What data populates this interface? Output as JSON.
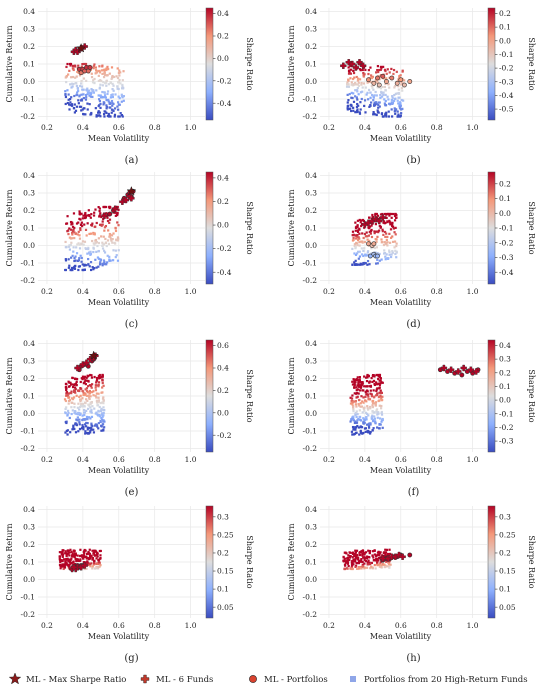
{
  "chart_data": [
    {
      "type": "scatter",
      "panel_label": "(a)",
      "xlabel": "Mean Volatility",
      "ylabel": "Cumulative Return",
      "xlim": [
        0.15,
        1.08
      ],
      "ylim": [
        -0.22,
        0.42
      ],
      "xticks": [
        0.2,
        0.4,
        0.6,
        0.8,
        1.0
      ],
      "yticks": [
        -0.2,
        -0.1,
        0.0,
        0.1,
        0.2,
        0.3,
        0.4
      ],
      "colorbar": {
        "label": "Sharpe Ratio",
        "ticks": [
          -0.4,
          -0.2,
          0.0,
          0.2,
          0.4
        ],
        "min": -0.55,
        "max": 0.45
      },
      "series": [
        {
          "name": "Portfolios from 20 High-Return Funds",
          "marker": "square",
          "cloud": {
            "x_min": 0.3,
            "x_max": 0.63,
            "y_min": -0.2,
            "y_max": 0.1,
            "slope": -0.55,
            "n": 320
          }
        },
        {
          "name": "ML - Portfolios",
          "marker": "circle",
          "points": [
            [
              0.38,
              0.07
            ],
            [
              0.39,
              0.05
            ],
            [
              0.4,
              0.07
            ],
            [
              0.41,
              0.06
            ],
            [
              0.42,
              0.08
            ],
            [
              0.43,
              0.06
            ],
            [
              0.44,
              0.08
            ]
          ]
        },
        {
          "name": "ML - 6 Funds",
          "marker": "plus",
          "points": [
            [
              0.35,
              0.17
            ],
            [
              0.36,
              0.18
            ],
            [
              0.38,
              0.18
            ],
            [
              0.39,
              0.19
            ],
            [
              0.41,
              0.2
            ],
            [
              0.37,
              0.17
            ]
          ]
        },
        {
          "name": "ML - Max Sharpe Ratio",
          "marker": "star",
          "points": [
            [
              0.39,
              0.19
            ]
          ]
        }
      ]
    },
    {
      "type": "scatter",
      "panel_label": "(b)",
      "xlabel": "Mean Volatility",
      "ylabel": "Cumulative Return",
      "xlim": [
        0.15,
        1.08
      ],
      "ylim": [
        -0.22,
        0.42
      ],
      "xticks": [
        0.2,
        0.4,
        0.6,
        0.8,
        1.0
      ],
      "yticks": [
        -0.2,
        -0.1,
        0.0,
        0.1,
        0.2,
        0.3,
        0.4
      ],
      "colorbar": {
        "label": "Sharpe Ratio",
        "ticks": [
          -0.5,
          -0.4,
          -0.3,
          -0.2,
          -0.1,
          0.0,
          0.1,
          0.2
        ],
        "min": -0.58,
        "max": 0.24
      },
      "series": [
        {
          "name": "Portfolios from 20 High-Return Funds",
          "marker": "square",
          "cloud": {
            "x_min": 0.3,
            "x_max": 0.62,
            "y_min": -0.2,
            "y_max": 0.1,
            "slope": -0.5,
            "n": 320
          }
        },
        {
          "name": "ML - Portfolios",
          "marker": "circle",
          "points": [
            [
              0.42,
              0.01
            ],
            [
              0.45,
              -0.01
            ],
            [
              0.47,
              0.02
            ],
            [
              0.48,
              -0.02
            ],
            [
              0.5,
              0.03
            ],
            [
              0.52,
              0.0
            ],
            [
              0.55,
              0.02
            ],
            [
              0.58,
              -0.01
            ],
            [
              0.6,
              0.01
            ],
            [
              0.62,
              -0.02
            ],
            [
              0.65,
              0.0
            ]
          ]
        },
        {
          "name": "ML - 6 Funds",
          "marker": "plus",
          "points": [
            [
              0.28,
              0.09
            ],
            [
              0.31,
              0.11
            ],
            [
              0.33,
              0.1
            ],
            [
              0.35,
              0.08
            ],
            [
              0.37,
              0.11
            ],
            [
              0.39,
              0.09
            ]
          ]
        },
        {
          "name": "ML - Max Sharpe Ratio",
          "marker": "star",
          "points": []
        }
      ]
    },
    {
      "type": "scatter",
      "panel_label": "(c)",
      "xlabel": "Mean Volatility",
      "ylabel": "Cumulative Return",
      "xlim": [
        0.15,
        1.08
      ],
      "ylim": [
        -0.22,
        0.42
      ],
      "xticks": [
        0.2,
        0.4,
        0.6,
        0.8,
        1.0
      ],
      "yticks": [
        -0.2,
        -0.1,
        0.0,
        0.1,
        0.2,
        0.3,
        0.4
      ],
      "colorbar": {
        "label": "Sharpe Ratio",
        "ticks": [
          -0.4,
          -0.2,
          0.0,
          0.2,
          0.4
        ],
        "min": -0.5,
        "max": 0.45
      },
      "series": [
        {
          "name": "Portfolios from 20 High-Return Funds",
          "marker": "square",
          "cloud": {
            "x_min": 0.3,
            "x_max": 0.6,
            "y_min": -0.14,
            "y_max": 0.22,
            "slope": 1.0,
            "n": 300
          }
        },
        {
          "name": "ML - Portfolios",
          "marker": "circle",
          "points": [
            [
              0.55,
              0.18
            ],
            [
              0.57,
              0.2
            ],
            [
              0.63,
              0.27
            ],
            [
              0.65,
              0.29
            ],
            [
              0.66,
              0.3
            ],
            [
              0.67,
              0.28
            ],
            [
              0.68,
              0.31
            ]
          ]
        },
        {
          "name": "ML - 6 Funds",
          "marker": "plus",
          "points": [
            [
              0.52,
              0.17
            ],
            [
              0.58,
              0.21
            ],
            [
              0.62,
              0.25
            ],
            [
              0.64,
              0.26
            ],
            [
              0.66,
              0.28
            ],
            [
              0.67,
              0.27
            ]
          ]
        },
        {
          "name": "ML - Max Sharpe Ratio",
          "marker": "star",
          "points": [
            [
              0.67,
              0.31
            ]
          ]
        }
      ]
    },
    {
      "type": "scatter",
      "panel_label": "(d)",
      "xlabel": "Mean Volatility",
      "ylabel": "Cumulative Return",
      "xlim": [
        0.15,
        1.08
      ],
      "ylim": [
        -0.22,
        0.42
      ],
      "xticks": [
        0.2,
        0.4,
        0.6,
        0.8,
        1.0
      ],
      "yticks": [
        -0.2,
        -0.1,
        0.0,
        0.1,
        0.2,
        0.3,
        0.4
      ],
      "colorbar": {
        "label": "Sharpe Ratio",
        "ticks": [
          -0.4,
          -0.3,
          -0.2,
          -0.1,
          0.0,
          0.1,
          0.2
        ],
        "min": -0.48,
        "max": 0.28
      },
      "series": [
        {
          "name": "Portfolios from 20 High-Return Funds",
          "marker": "square",
          "cloud": {
            "x_min": 0.33,
            "x_max": 0.58,
            "y_min": -0.11,
            "y_max": 0.18,
            "slope": 1.0,
            "n": 260
          }
        },
        {
          "name": "ML - Portfolios",
          "marker": "circle",
          "points": [
            [
              0.42,
              0.01
            ],
            [
              0.44,
              0.0
            ],
            [
              0.45,
              0.01
            ],
            [
              0.43,
              -0.06
            ],
            [
              0.45,
              -0.05
            ],
            [
              0.46,
              -0.06
            ],
            [
              0.47,
              -0.06
            ]
          ]
        },
        {
          "name": "ML - 6 Funds",
          "marker": "plus",
          "points": [
            [
              0.4,
              0.12
            ],
            [
              0.42,
              0.13
            ],
            [
              0.44,
              0.14
            ],
            [
              0.46,
              0.15
            ],
            [
              0.48,
              0.14
            ],
            [
              0.5,
              0.16
            ]
          ]
        },
        {
          "name": "ML - Max Sharpe Ratio",
          "marker": "star",
          "points": []
        }
      ]
    },
    {
      "type": "scatter",
      "panel_label": "(e)",
      "xlabel": "Mean Volatility",
      "ylabel": "Cumulative Return",
      "xlim": [
        0.15,
        1.08
      ],
      "ylim": [
        -0.22,
        0.42
      ],
      "xticks": [
        0.2,
        0.4,
        0.6,
        0.8,
        1.0
      ],
      "yticks": [
        -0.2,
        -0.1,
        0.0,
        0.1,
        0.2,
        0.3,
        0.4
      ],
      "colorbar": {
        "label": "Sharpe Ratio",
        "ticks": [
          -0.2,
          0.0,
          0.2,
          0.4,
          0.6
        ],
        "min": -0.35,
        "max": 0.65
      },
      "series": [
        {
          "name": "Portfolios from 20 High-Return Funds",
          "marker": "square",
          "cloud": {
            "x_min": 0.3,
            "x_max": 0.52,
            "y_min": -0.12,
            "y_max": 0.22,
            "slope": 0.6,
            "n": 330
          }
        },
        {
          "name": "ML - Portfolios",
          "marker": "circle",
          "points": [
            [
              0.38,
              0.25
            ],
            [
              0.39,
              0.27
            ],
            [
              0.41,
              0.28
            ],
            [
              0.43,
              0.27
            ],
            [
              0.45,
              0.3
            ],
            [
              0.46,
              0.31
            ]
          ]
        },
        {
          "name": "ML - 6 Funds",
          "marker": "plus",
          "points": [
            [
              0.37,
              0.26
            ],
            [
              0.4,
              0.28
            ],
            [
              0.42,
              0.29
            ],
            [
              0.44,
              0.31
            ],
            [
              0.46,
              0.32
            ],
            [
              0.47,
              0.33
            ]
          ]
        },
        {
          "name": "ML - Max Sharpe Ratio",
          "marker": "star",
          "points": [
            [
              0.46,
              0.33
            ]
          ]
        }
      ]
    },
    {
      "type": "scatter",
      "panel_label": "(f)",
      "xlabel": "Mean Volatility",
      "ylabel": "Cumulative Return",
      "xlim": [
        0.15,
        1.08
      ],
      "ylim": [
        -0.22,
        0.42
      ],
      "xticks": [
        0.2,
        0.4,
        0.6,
        0.8,
        1.0
      ],
      "yticks": [
        -0.2,
        -0.1,
        0.0,
        0.1,
        0.2,
        0.3,
        0.4
      ],
      "colorbar": {
        "label": "Sharpe Ratio",
        "ticks": [
          -0.3,
          -0.2,
          -0.1,
          0.0,
          0.1,
          0.2,
          0.3,
          0.4
        ],
        "min": -0.38,
        "max": 0.44
      },
      "series": [
        {
          "name": "Portfolios from 20 High-Return Funds",
          "marker": "square",
          "cloud": {
            "x_min": 0.32,
            "x_max": 0.5,
            "y_min": -0.12,
            "y_max": 0.22,
            "slope": 0.6,
            "n": 320
          }
        },
        {
          "name": "ML - Portfolios",
          "marker": "circle",
          "points": [
            [
              0.82,
              0.25
            ],
            [
              0.86,
              0.24
            ],
            [
              0.9,
              0.23
            ],
            [
              0.94,
              0.22
            ],
            [
              0.97,
              0.24
            ],
            [
              1.0,
              0.23
            ],
            [
              1.03,
              0.25
            ]
          ]
        },
        {
          "name": "ML - 6 Funds",
          "marker": "plus",
          "points": [
            [
              0.84,
              0.26
            ],
            [
              0.88,
              0.25
            ],
            [
              0.92,
              0.24
            ],
            [
              0.95,
              0.26
            ],
            [
              0.99,
              0.25
            ],
            [
              1.02,
              0.24
            ]
          ]
        },
        {
          "name": "ML - Max Sharpe Ratio",
          "marker": "star",
          "points": []
        }
      ]
    },
    {
      "type": "scatter",
      "panel_label": "(g)",
      "xlabel": "Mean Volatility",
      "ylabel": "Cumulative Return",
      "xlim": [
        0.15,
        1.08
      ],
      "ylim": [
        -0.22,
        0.42
      ],
      "xticks": [
        0.2,
        0.4,
        0.6,
        0.8,
        1.0
      ],
      "yticks": [
        -0.2,
        -0.1,
        0.0,
        0.1,
        0.2,
        0.3,
        0.4
      ],
      "colorbar": {
        "label": "Sharpe Ratio",
        "ticks": [
          0.05,
          0.1,
          0.15,
          0.2,
          0.25,
          0.3
        ],
        "min": 0.02,
        "max": 0.33
      },
      "series": [
        {
          "name": "Portfolios from 20 High-Return Funds",
          "marker": "square",
          "cloud": {
            "x_min": 0.27,
            "x_max": 0.5,
            "y_min": 0.06,
            "y_max": 0.17,
            "slope": 0.0,
            "n": 240
          }
        },
        {
          "name": "ML - Portfolios",
          "marker": "circle",
          "points": [
            [
              0.34,
              0.06
            ],
            [
              0.35,
              0.07
            ],
            [
              0.36,
              0.07
            ],
            [
              0.37,
              0.08
            ],
            [
              0.38,
              0.07
            ],
            [
              0.39,
              0.08
            ],
            [
              0.4,
              0.08
            ]
          ]
        },
        {
          "name": "ML - 6 Funds",
          "marker": "plus",
          "points": [
            [
              0.34,
              0.06
            ],
            [
              0.36,
              0.06
            ],
            [
              0.37,
              0.07
            ],
            [
              0.39,
              0.07
            ],
            [
              0.41,
              0.08
            ],
            [
              0.35,
              0.07
            ]
          ]
        },
        {
          "name": "ML - Max Sharpe Ratio",
          "marker": "star",
          "points": []
        }
      ]
    },
    {
      "type": "scatter",
      "panel_label": "(h)",
      "xlabel": "Mean Volatility",
      "ylabel": "Cumulative Return",
      "xlim": [
        0.15,
        1.08
      ],
      "ylim": [
        -0.22,
        0.42
      ],
      "xticks": [
        0.2,
        0.4,
        0.6,
        0.8,
        1.0
      ],
      "yticks": [
        -0.2,
        -0.1,
        0.0,
        0.1,
        0.2,
        0.3,
        0.4
      ],
      "colorbar": {
        "label": "Sharpe Ratio",
        "ticks": [
          0.05,
          0.1,
          0.15,
          0.2,
          0.25,
          0.3
        ],
        "min": 0.02,
        "max": 0.33
      },
      "series": [
        {
          "name": "Portfolios from 20 High-Return Funds",
          "marker": "square",
          "cloud": {
            "x_min": 0.28,
            "x_max": 0.55,
            "y_min": 0.06,
            "y_max": 0.17,
            "slope": 0.15,
            "n": 240
          }
        },
        {
          "name": "ML - Portfolios",
          "marker": "circle",
          "points": [
            [
              0.5,
              0.11
            ],
            [
              0.52,
              0.12
            ],
            [
              0.54,
              0.12
            ],
            [
              0.56,
              0.13
            ],
            [
              0.58,
              0.13
            ],
            [
              0.6,
              0.14
            ],
            [
              0.65,
              0.14
            ]
          ]
        },
        {
          "name": "ML - 6 Funds",
          "marker": "plus",
          "points": [
            [
              0.5,
              0.12
            ],
            [
              0.53,
              0.12
            ],
            [
              0.55,
              0.13
            ],
            [
              0.57,
              0.13
            ],
            [
              0.59,
              0.14
            ],
            [
              0.61,
              0.13
            ]
          ]
        },
        {
          "name": "ML - Max Sharpe Ratio",
          "marker": "star",
          "points": []
        }
      ]
    }
  ],
  "legend": {
    "position": "bottom",
    "items": [
      {
        "label": "ML - Max Sharpe Ratio",
        "marker": "star",
        "color": "#8b1a1a"
      },
      {
        "label": "ML - 6 Funds",
        "marker": "plus",
        "color": "#c0392b"
      },
      {
        "label": "ML - Portfolios",
        "marker": "circle",
        "color": "#d9432f"
      },
      {
        "label": "Portfolios from 20 High-Return Funds",
        "marker": "square",
        "color": "#8fa6e8"
      }
    ]
  },
  "colors": {
    "cmap_low": "#3a4cc0",
    "cmap_mid": "#dddddd",
    "cmap_high": "#b40426",
    "grid": "#e6e6e6"
  }
}
